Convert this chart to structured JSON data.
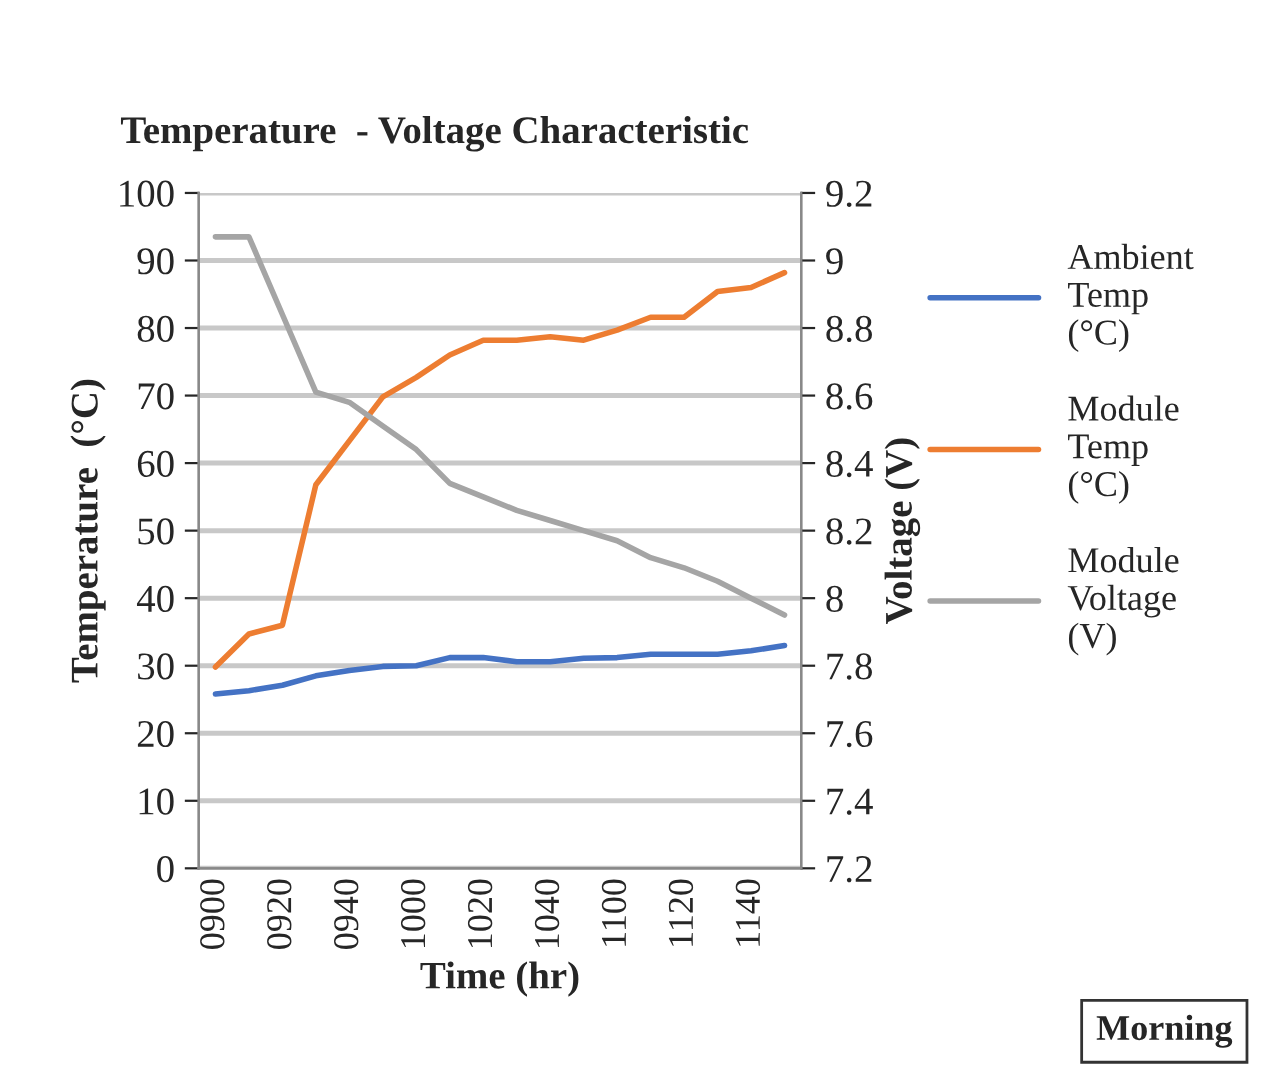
{
  "chart_data": {
    "type": "line",
    "title": "Temperature  - Voltage Characteristic",
    "xlabel": "Time (hr)",
    "ylabel": "Temperature  (°C)",
    "y2label": "Voltage (V)",
    "categories": [
      "0900",
      null,
      "0920",
      null,
      "0940",
      null,
      "1000",
      null,
      "1020",
      null,
      "1040",
      null,
      "1100",
      null,
      "1120",
      null,
      "1140",
      null
    ],
    "series": [
      {
        "name": "Ambient Temp (°C)",
        "color": "#4472c4",
        "values": [
          25.8,
          26.3,
          27.1,
          28.5,
          29.3,
          29.9,
          30,
          31.2,
          31.2,
          30.6,
          30.6,
          31.1,
          31.2,
          31.7,
          31.7,
          31.7,
          32.2,
          33
        ]
      },
      {
        "name": "Module Temp (°C)",
        "color": "#ed7d31",
        "values": [
          29.8,
          34.7,
          36,
          56.8,
          63.3,
          69.8,
          72.7,
          76,
          78.2,
          78.2,
          78.7,
          78.2,
          79.7,
          81.6,
          81.6,
          85.4,
          86,
          88.2
        ]
      },
      {
        "name": "Module Voltage (V)",
        "color": "#a5a5a5",
        "axis": "y2",
        "values": [
          9.07,
          9.07,
          8.84,
          8.61,
          8.58,
          8.51,
          8.44,
          8.34,
          8.3,
          8.26,
          8.23,
          8.2,
          8.17,
          8.12,
          8.09,
          8.05,
          8.0,
          7.95
        ]
      }
    ],
    "ylim": [
      0,
      100
    ],
    "yticks": [
      0,
      10,
      20,
      30,
      40,
      50,
      60,
      70,
      80,
      90,
      100
    ],
    "y2lim": [
      7.2,
      9.2
    ],
    "y2ticks": [
      {
        "value": 7.2,
        "label": "7.2"
      },
      {
        "value": 7.4,
        "label": "7.4"
      },
      {
        "value": 7.6,
        "label": "7.6"
      },
      {
        "value": 7.8,
        "label": "7.8"
      },
      8,
      {
        "value": 8.2,
        "label": "8.2"
      },
      {
        "value": 8.4,
        "label": "8.4"
      },
      {
        "value": 8.6,
        "label": "8.6"
      },
      {
        "value": 8.8,
        "label": "8.8"
      },
      9,
      {
        "value": 9.2,
        "label": "9.2"
      }
    ],
    "grid": "y",
    "legend": "right",
    "marker": "none",
    "line_style": "solid",
    "annotations": [
      "Morning"
    ]
  }
}
